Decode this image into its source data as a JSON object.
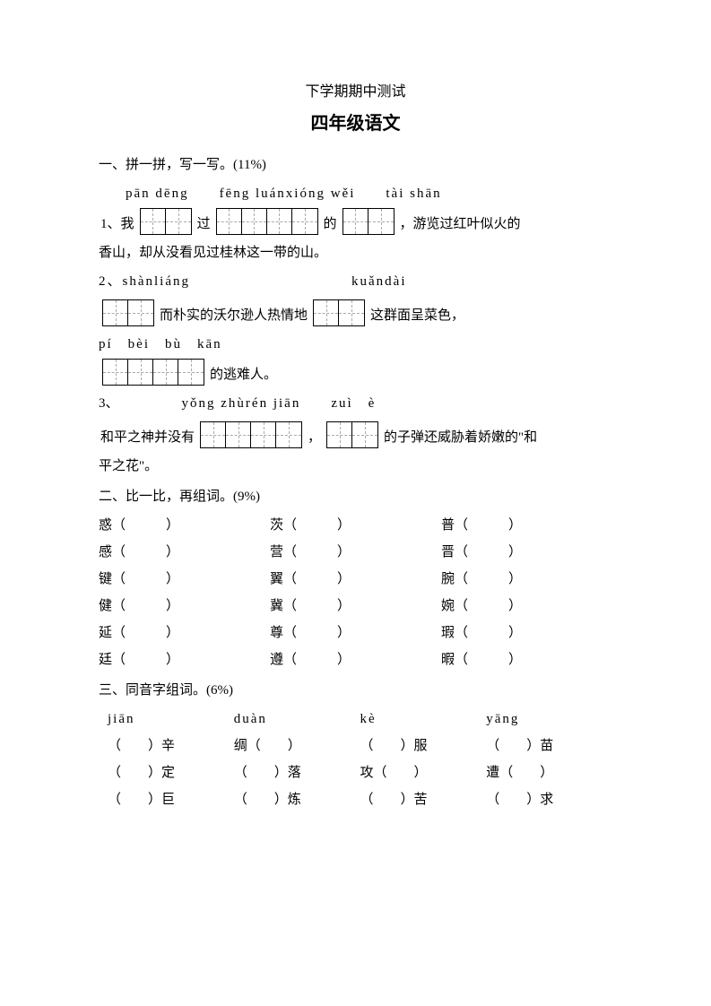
{
  "header": {
    "line1": "下学期期中测试",
    "line2": "四年级语文"
  },
  "section1": {
    "title": "一、拼一拼，写一写。(11%)",
    "q1_pinyin": "pān dēng　　fēng luánxióng wěi　　tài shān",
    "q1_pre": "1、我",
    "q1_mid1": "过",
    "q1_mid2": "的",
    "q1_post": "，游览过红叶似火的",
    "q1_line2": "香山，却从没看见过桂林这一带的山。",
    "q2_pinyin_left": "2、shànliáng",
    "q2_pinyin_right": "kuǎndài",
    "q2_mid": "而朴实的沃尔逊人热情地",
    "q2_post": "这群面呈菜色，",
    "q2b_pinyin": "pí　bèi　bù　kān",
    "q2b_post": "的逃难人。",
    "q3_label": "3、",
    "q3_pinyin": "yǒng zhùrén jiān　　zuì　è",
    "q3_pre": "和平之神并没有",
    "q3_mid": "，",
    "q3_post": "的子弹还威胁着娇嫩的\"和",
    "q3_line2": "平之花\"。"
  },
  "section2": {
    "title": "二、比一比，再组词。(9%)",
    "rows": [
      [
        "惑（　　　）",
        "茨（　　　）",
        "普（　　　）"
      ],
      [
        "感（　　　）",
        "营（　　　）",
        "晋（　　　）"
      ],
      [
        "键（　　　）",
        "翼（　　　）",
        "腕（　　　）"
      ],
      [
        "健（　　　）",
        "冀（　　　）",
        "婉（　　　）"
      ],
      [
        "延（　　　）",
        "尊（　　　）",
        "瑕（　　　）"
      ],
      [
        "廷（　　　）",
        "遵（　　　）",
        "暇（　　　）"
      ]
    ]
  },
  "section3": {
    "title": "三、同音字组词。(6%)",
    "head": [
      "jiān",
      "duàn",
      "kè",
      "yāng"
    ],
    "rows": [
      [
        "（　　）辛",
        "绸（　　）",
        "（　　）服",
        "（　　）苗"
      ],
      [
        "（　　）定",
        "（　　）落",
        "攻（　　）",
        "遭（　　）"
      ],
      [
        "（　　）巨",
        "（　　）炼",
        "（　　）苦",
        "（　　）求"
      ]
    ]
  }
}
